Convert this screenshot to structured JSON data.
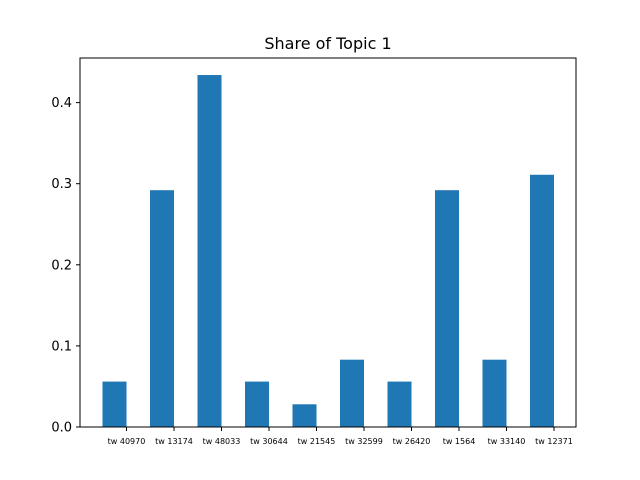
{
  "chart_data": {
    "type": "bar",
    "title": "Share of Topic 1",
    "xlabel": "",
    "ylabel": "",
    "categories": [
      "tw 40970",
      "tw 13174",
      "tw 48033",
      "tw 30644",
      "tw 21545",
      "tw 32599",
      "tw 26420",
      "tw 1564",
      "tw 33140",
      "tw 12371"
    ],
    "values": [
      0.056,
      0.292,
      0.434,
      0.056,
      0.028,
      0.083,
      0.056,
      0.292,
      0.083,
      0.311
    ],
    "ylim": [
      0,
      0.455
    ],
    "yticks": [
      0.0,
      0.1,
      0.2,
      0.3,
      0.4
    ],
    "ytick_labels": [
      "0.0",
      "0.1",
      "0.2",
      "0.3",
      "0.4"
    ],
    "bar_color": "#1f77b4",
    "grid": false,
    "legend": "none"
  }
}
